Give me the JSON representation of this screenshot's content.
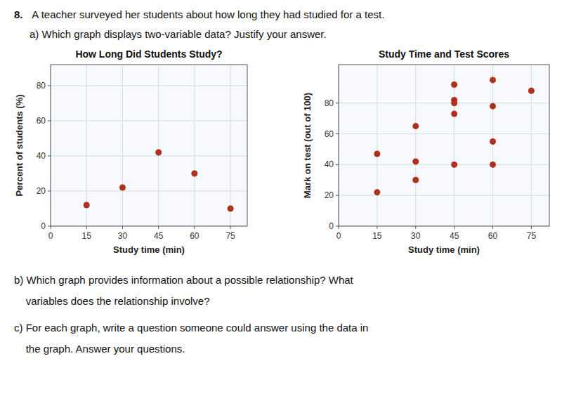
{
  "chart_data": [
    {
      "type": "scatter",
      "title": "How Long Did Students Study?",
      "x_label": "Study time (min)",
      "y_label": "Percent of students (%)",
      "x": [
        15,
        30,
        45,
        60,
        75
      ],
      "values": [
        12,
        22,
        42,
        30,
        10
      ],
      "color": "#b03020",
      "xlim": [
        0,
        82
      ],
      "ylim": [
        0,
        92
      ],
      "xticks": [
        0,
        15,
        30,
        45,
        60,
        75
      ],
      "yticks": [
        0,
        20,
        40,
        60,
        80
      ],
      "grid": true
    },
    {
      "type": "scatter",
      "title": "Study Time and Test Scores",
      "x_label": "Study time (min)",
      "y_label": "Mark on test (out of 100)",
      "x": [
        15,
        15,
        30,
        30,
        30,
        45,
        45,
        45,
        45,
        45,
        60,
        60,
        60,
        60,
        75
      ],
      "values": [
        47,
        22,
        65,
        42,
        30,
        92,
        82,
        80,
        73,
        40,
        95,
        78,
        55,
        40,
        88
      ],
      "color": "#b03020",
      "xlim": [
        0,
        82
      ],
      "ylim": [
        0,
        105
      ],
      "xticks": [
        0,
        15,
        30,
        45,
        60,
        75
      ],
      "yticks": [
        0,
        20,
        40,
        60,
        80
      ],
      "grid": true
    }
  ],
  "annotations": [
    "8.",
    " A teacher surveyed her students about how long they had studied for a test.",
    "a) Which graph displays two-variable data? Justify your answer.",
    "b) Which graph provides information about a possible relationship? What",
    "    variables does the relationship involve?",
    "c) For each graph, write a question someone could answer using the data in",
    "    the graph. Answer your questions."
  ]
}
